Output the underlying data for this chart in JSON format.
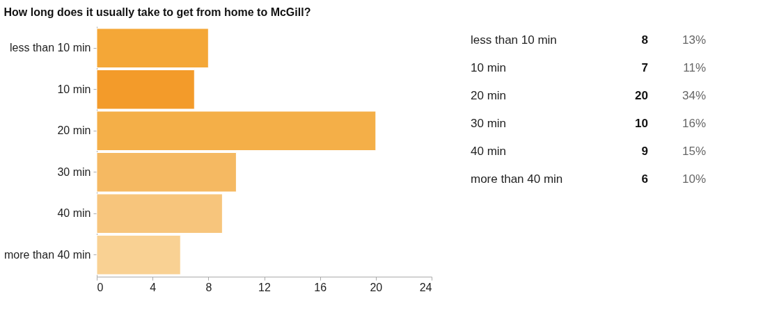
{
  "chart_data": {
    "type": "bar",
    "orientation": "horizontal",
    "title": "How long does it usually take to get from home to McGill?",
    "categories": [
      "less than 10 min",
      "10 min",
      "20 min",
      "30 min",
      "40 min",
      "more than 40 min"
    ],
    "values": [
      8,
      7,
      20,
      10,
      9,
      6
    ],
    "colors": [
      "#f4a737",
      "#f39b2a",
      "#f4af48",
      "#f5b962",
      "#f7c57c",
      "#f9d193"
    ],
    "xlim": [
      0,
      24
    ],
    "xticks": [
      0,
      4,
      8,
      12,
      16,
      20,
      24
    ],
    "grid": false,
    "annotations": [
      "8",
      "13%",
      "7",
      "11%",
      "20",
      "34%",
      "10",
      "16%",
      "9",
      "15%",
      "6",
      "10%"
    ]
  }
}
